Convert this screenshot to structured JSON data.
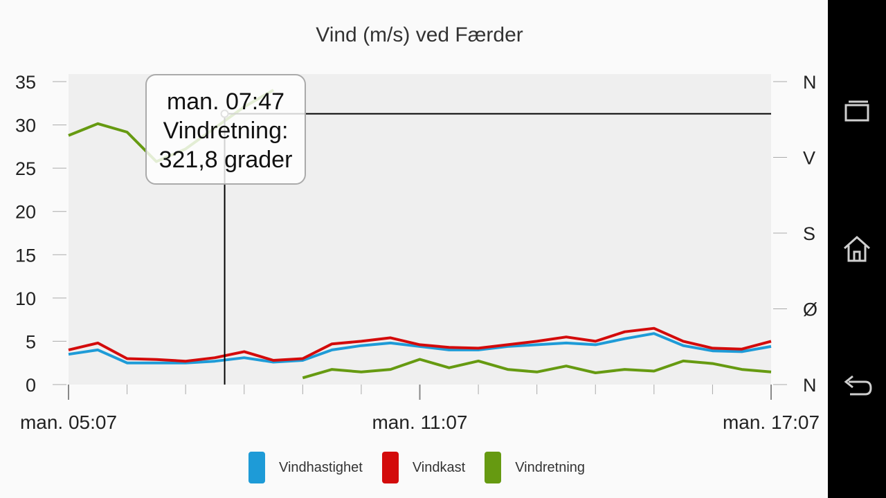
{
  "chart_data": {
    "type": "line",
    "title": "Vind (m/s) ved Færder",
    "x_ticks": [
      "man. 05:07",
      "man. 11:07",
      "man. 17:07"
    ],
    "x_range": [
      "man. 05:07",
      "man. 17:07"
    ],
    "y_left": {
      "ticks": [
        "35",
        "30",
        "25",
        "20",
        "15",
        "10",
        "5",
        "0"
      ],
      "range": [
        0,
        35
      ],
      "unit": "m/s"
    },
    "y_right": {
      "ticks": [
        "N",
        "V",
        "S",
        "Ø",
        "N"
      ],
      "range": [
        0,
        360
      ],
      "unit": "grader"
    },
    "time_hours": [
      0,
      0.5,
      1,
      1.5,
      2,
      2.5,
      3,
      3.5,
      4,
      4.5,
      5,
      5.5,
      6,
      6.5,
      7,
      7.5,
      8,
      8.5,
      9,
      9.5,
      10,
      10.5,
      11,
      11.5,
      12
    ],
    "series": [
      {
        "name": "Vindhastighet",
        "color": "#1e9bd7",
        "axis": "left",
        "values": [
          3.5,
          4.0,
          2.5,
          2.5,
          2.5,
          2.7,
          3.1,
          2.6,
          2.8,
          4.0,
          4.5,
          4.8,
          4.4,
          4.0,
          4.0,
          4.4,
          4.6,
          4.8,
          4.6,
          5.3,
          5.9,
          4.5,
          3.9,
          3.8,
          4.4
        ]
      },
      {
        "name": "Vindkast",
        "color": "#d30b0b",
        "axis": "left",
        "values": [
          4.0,
          4.8,
          3.0,
          2.9,
          2.7,
          3.1,
          3.8,
          2.8,
          3.0,
          4.7,
          5.0,
          5.4,
          4.6,
          4.3,
          4.2,
          4.6,
          5.0,
          5.5,
          5.0,
          6.1,
          6.5,
          5.0,
          4.2,
          4.1,
          5.0
        ]
      },
      {
        "name": "Vindretning",
        "color": "#669a11",
        "axis": "right",
        "values": [
          296,
          310,
          300,
          265,
          280,
          305,
          330,
          350,
          8,
          18,
          15,
          18,
          30,
          20,
          28,
          18,
          15,
          22,
          14,
          18,
          16,
          28,
          25,
          18,
          15
        ]
      }
    ],
    "tooltip": {
      "time": "man. 07:47",
      "series": "Vindretning",
      "value": 321.8,
      "lines": [
        "man. 07:47",
        "Vindretning:",
        "321,8 grader"
      ]
    },
    "legend_placement": "bottom",
    "grid": false
  },
  "navbar": {
    "recent_label": "recent-apps",
    "home_label": "home",
    "back_label": "back"
  }
}
